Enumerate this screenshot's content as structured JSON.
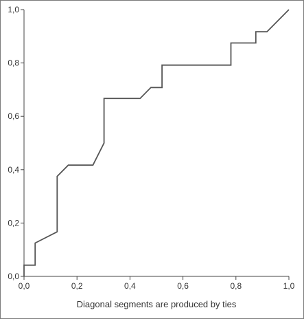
{
  "chart_data": {
    "type": "line",
    "title": "",
    "xlabel": "Diagonal segments are produced by ties",
    "ylabel": "",
    "xlim": [
      0,
      1
    ],
    "ylim": [
      0,
      1
    ],
    "x_ticks": [
      "0,0",
      "0,2",
      "0,4",
      "0,6",
      "0,8",
      "1,0"
    ],
    "y_ticks": [
      "0,0",
      "0,2",
      "0,4",
      "0,6",
      "0,8",
      "1,0"
    ],
    "grid": false,
    "legend": "none",
    "line_color": "#555555",
    "series": [
      {
        "x": [
          0.0,
          0.0,
          0.042,
          0.042,
          0.125,
          0.125,
          0.167,
          0.26,
          0.302,
          0.302,
          0.438,
          0.479,
          0.521,
          0.521,
          0.781,
          0.781,
          0.875,
          0.875,
          0.917,
          1.0
        ],
        "y": [
          0.0,
          0.042,
          0.042,
          0.125,
          0.167,
          0.375,
          0.417,
          0.417,
          0.5,
          0.667,
          0.667,
          0.708,
          0.708,
          0.792,
          0.792,
          0.875,
          0.875,
          0.917,
          0.917,
          1.0
        ]
      }
    ]
  }
}
